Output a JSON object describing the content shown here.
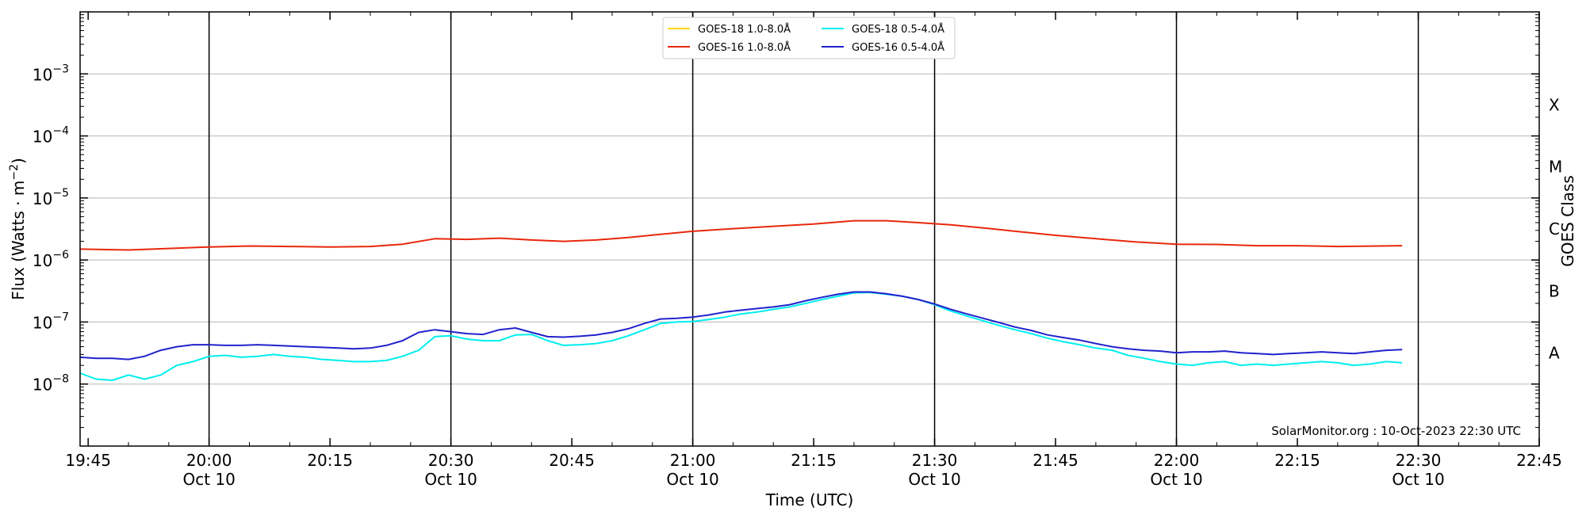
{
  "chart_data": {
    "type": "line",
    "xlabel": "Time (UTC)",
    "ylabel": "Flux (Watts · m",
    "ylabel_sup": "−2",
    "ylabel_close": ")",
    "right_label": "GOES Class",
    "y_scale": "log",
    "ylim": [
      1e-09,
      0.01
    ],
    "xlim": [
      "19:44",
      "22:45"
    ],
    "grid": "horizontal at each decade",
    "legend_placement": "top-center",
    "credit": "SolarMonitor.org : 10-Oct-2023 22:30 UTC",
    "x_ticks": [
      {
        "time": "19:45",
        "label": "19:45",
        "date": ""
      },
      {
        "time": "20:00",
        "label": "20:00",
        "date": "Oct 10"
      },
      {
        "time": "20:15",
        "label": "20:15",
        "date": ""
      },
      {
        "time": "20:30",
        "label": "20:30",
        "date": "Oct 10"
      },
      {
        "time": "20:45",
        "label": "20:45",
        "date": ""
      },
      {
        "time": "21:00",
        "label": "21:00",
        "date": "Oct 10"
      },
      {
        "time": "21:15",
        "label": "21:15",
        "date": ""
      },
      {
        "time": "21:30",
        "label": "21:30",
        "date": "Oct 10"
      },
      {
        "time": "21:45",
        "label": "21:45",
        "date": ""
      },
      {
        "time": "22:00",
        "label": "22:00",
        "date": "Oct 10"
      },
      {
        "time": "22:15",
        "label": "22:15",
        "date": ""
      },
      {
        "time": "22:30",
        "label": "22:30",
        "date": "Oct 10"
      },
      {
        "time": "22:45",
        "label": "22:45",
        "date": ""
      }
    ],
    "vertical_lines": [
      "20:00",
      "20:30",
      "21:00",
      "21:30",
      "22:00",
      "22:30"
    ],
    "y_ticks": [
      {
        "value": 1e-08,
        "base": "10",
        "exp": "−8"
      },
      {
        "value": 1e-07,
        "base": "10",
        "exp": "−7"
      },
      {
        "value": 1e-06,
        "base": "10",
        "exp": "−6"
      },
      {
        "value": 1e-05,
        "base": "10",
        "exp": "−5"
      },
      {
        "value": 0.0001,
        "base": "10",
        "exp": "−4"
      },
      {
        "value": 0.001,
        "base": "10",
        "exp": "−3"
      }
    ],
    "goes_classes": [
      {
        "label": "A",
        "value": 3.16e-08
      },
      {
        "label": "B",
        "value": 3.16e-07
      },
      {
        "label": "C",
        "value": 3.16e-06
      },
      {
        "label": "M",
        "value": 3.16e-05
      },
      {
        "label": "X",
        "value": 0.000316
      }
    ],
    "series": [
      {
        "name": "GOES-18 1.0-8.0Å",
        "color": "#ffd700",
        "x": [],
        "y": []
      },
      {
        "name": "GOES-18 0.5-4.0Å",
        "color": "#00eeee",
        "x": [
          "19:44",
          "19:46",
          "19:48",
          "19:50",
          "19:52",
          "19:54",
          "19:56",
          "19:58",
          "20:00",
          "20:02",
          "20:04",
          "20:06",
          "20:08",
          "20:10",
          "20:12",
          "20:14",
          "20:16",
          "20:18",
          "20:20",
          "20:22",
          "20:24",
          "20:26",
          "20:28",
          "20:30",
          "20:32",
          "20:34",
          "20:36",
          "20:38",
          "20:40",
          "20:42",
          "20:44",
          "20:46",
          "20:48",
          "20:50",
          "20:52",
          "20:54",
          "20:56",
          "20:58",
          "21:00",
          "21:02",
          "21:04",
          "21:06",
          "21:08",
          "21:10",
          "21:12",
          "21:14",
          "21:16",
          "21:18",
          "21:20",
          "21:22",
          "21:24",
          "21:26",
          "21:28",
          "21:30",
          "21:32",
          "21:34",
          "21:36",
          "21:38",
          "21:40",
          "21:42",
          "21:44",
          "21:46",
          "21:48",
          "21:50",
          "21:52",
          "21:54",
          "21:56",
          "21:58",
          "22:00",
          "22:02",
          "22:04",
          "22:06",
          "22:08",
          "22:10",
          "22:12",
          "22:14",
          "22:16",
          "22:18",
          "22:20",
          "22:22",
          "22:24",
          "22:26",
          "22:28"
        ],
        "y": [
          1.5e-08,
          1.2e-08,
          1.15e-08,
          1.4e-08,
          1.2e-08,
          1.4e-08,
          2e-08,
          2.3e-08,
          2.8e-08,
          2.9e-08,
          2.7e-08,
          2.8e-08,
          3e-08,
          2.8e-08,
          2.7e-08,
          2.5e-08,
          2.4e-08,
          2.3e-08,
          2.3e-08,
          2.4e-08,
          2.8e-08,
          3.5e-08,
          5.8e-08,
          6e-08,
          5.3e-08,
          5e-08,
          5e-08,
          6.2e-08,
          6.3e-08,
          5e-08,
          4.2e-08,
          4.3e-08,
          4.5e-08,
          5e-08,
          6e-08,
          7.5e-08,
          9.5e-08,
          1e-07,
          1.02e-07,
          1.1e-07,
          1.2e-07,
          1.35e-07,
          1.45e-07,
          1.6e-07,
          1.75e-07,
          2e-07,
          2.3e-07,
          2.6e-07,
          2.95e-07,
          3e-07,
          2.8e-07,
          2.6e-07,
          2.3e-07,
          1.9e-07,
          1.5e-07,
          1.25e-07,
          1.05e-07,
          8.8e-08,
          7.5e-08,
          6.5e-08,
          5.5e-08,
          4.8e-08,
          4.3e-08,
          3.8e-08,
          3.5e-08,
          2.9e-08,
          2.6e-08,
          2.3e-08,
          2.1e-08,
          2e-08,
          2.2e-08,
          2.3e-08,
          2e-08,
          2.1e-08,
          2e-08,
          2.1e-08,
          2.2e-08,
          2.3e-08,
          2.2e-08,
          2e-08,
          2.1e-08,
          2.3e-08,
          2.2e-08
        ]
      },
      {
        "name": "GOES-16 1.0-8.0Å",
        "color": "#e8280c",
        "x": [
          "19:44",
          "19:50",
          "19:56",
          "20:00",
          "20:05",
          "20:10",
          "20:15",
          "20:20",
          "20:24",
          "20:28",
          "20:32",
          "20:36",
          "20:40",
          "20:44",
          "20:48",
          "20:52",
          "20:56",
          "21:00",
          "21:05",
          "21:10",
          "21:15",
          "21:20",
          "21:24",
          "21:28",
          "21:32",
          "21:36",
          "21:40",
          "21:45",
          "21:50",
          "21:55",
          "22:00",
          "22:05",
          "22:10",
          "22:15",
          "22:20",
          "22:28"
        ],
        "y": [
          1.5e-06,
          1.45e-06,
          1.55e-06,
          1.62e-06,
          1.68e-06,
          1.65e-06,
          1.62e-06,
          1.65e-06,
          1.8e-06,
          2.2e-06,
          2.15e-06,
          2.25e-06,
          2.1e-06,
          2e-06,
          2.1e-06,
          2.3e-06,
          2.6e-06,
          2.9e-06,
          3.2e-06,
          3.5e-06,
          3.8e-06,
          4.3e-06,
          4.3e-06,
          4e-06,
          3.7e-06,
          3.3e-06,
          2.9e-06,
          2.5e-06,
          2.2e-06,
          1.95e-06,
          1.8e-06,
          1.78e-06,
          1.7e-06,
          1.7e-06,
          1.65e-06,
          1.7e-06
        ]
      },
      {
        "name": "GOES-16 0.5-4.0Å",
        "color": "#2222cc",
        "x": [
          "19:44",
          "19:46",
          "19:48",
          "19:50",
          "19:52",
          "19:54",
          "19:56",
          "19:58",
          "20:00",
          "20:02",
          "20:04",
          "20:06",
          "20:08",
          "20:10",
          "20:12",
          "20:14",
          "20:16",
          "20:18",
          "20:20",
          "20:22",
          "20:24",
          "20:26",
          "20:28",
          "20:30",
          "20:32",
          "20:34",
          "20:36",
          "20:38",
          "20:40",
          "20:42",
          "20:44",
          "20:46",
          "20:48",
          "20:50",
          "20:52",
          "20:54",
          "20:56",
          "20:58",
          "21:00",
          "21:02",
          "21:04",
          "21:06",
          "21:08",
          "21:10",
          "21:12",
          "21:14",
          "21:16",
          "21:18",
          "21:20",
          "21:22",
          "21:24",
          "21:26",
          "21:28",
          "21:30",
          "21:32",
          "21:34",
          "21:36",
          "21:38",
          "21:40",
          "21:42",
          "21:44",
          "21:46",
          "21:48",
          "21:50",
          "21:52",
          "21:54",
          "21:56",
          "21:58",
          "22:00",
          "22:02",
          "22:04",
          "22:06",
          "22:08",
          "22:10",
          "22:12",
          "22:14",
          "22:16",
          "22:18",
          "22:20",
          "22:22",
          "22:24",
          "22:26",
          "22:28"
        ],
        "y": [
          2.7e-08,
          2.6e-08,
          2.6e-08,
          2.5e-08,
          2.8e-08,
          3.5e-08,
          4e-08,
          4.3e-08,
          4.3e-08,
          4.2e-08,
          4.2e-08,
          4.3e-08,
          4.2e-08,
          4.1e-08,
          4e-08,
          3.9e-08,
          3.8e-08,
          3.7e-08,
          3.8e-08,
          4.2e-08,
          5e-08,
          6.8e-08,
          7.5e-08,
          7e-08,
          6.5e-08,
          6.3e-08,
          7.5e-08,
          8e-08,
          6.8e-08,
          5.8e-08,
          5.7e-08,
          5.9e-08,
          6.2e-08,
          6.8e-08,
          7.8e-08,
          9.5e-08,
          1.12e-07,
          1.15e-07,
          1.2e-07,
          1.3e-07,
          1.45e-07,
          1.55e-07,
          1.65e-07,
          1.75e-07,
          1.9e-07,
          2.2e-07,
          2.5e-07,
          2.8e-07,
          3.05e-07,
          3.05e-07,
          2.85e-07,
          2.6e-07,
          2.3e-07,
          1.95e-07,
          1.6e-07,
          1.35e-07,
          1.15e-07,
          9.8e-08,
          8.3e-08,
          7.3e-08,
          6.2e-08,
          5.6e-08,
          5.1e-08,
          4.5e-08,
          4e-08,
          3.7e-08,
          3.5e-08,
          3.4e-08,
          3.2e-08,
          3.3e-08,
          3.3e-08,
          3.4e-08,
          3.2e-08,
          3.1e-08,
          3e-08,
          3.1e-08,
          3.2e-08,
          3.3e-08,
          3.2e-08,
          3.1e-08,
          3.3e-08,
          3.5e-08,
          3.6e-08
        ]
      }
    ]
  }
}
